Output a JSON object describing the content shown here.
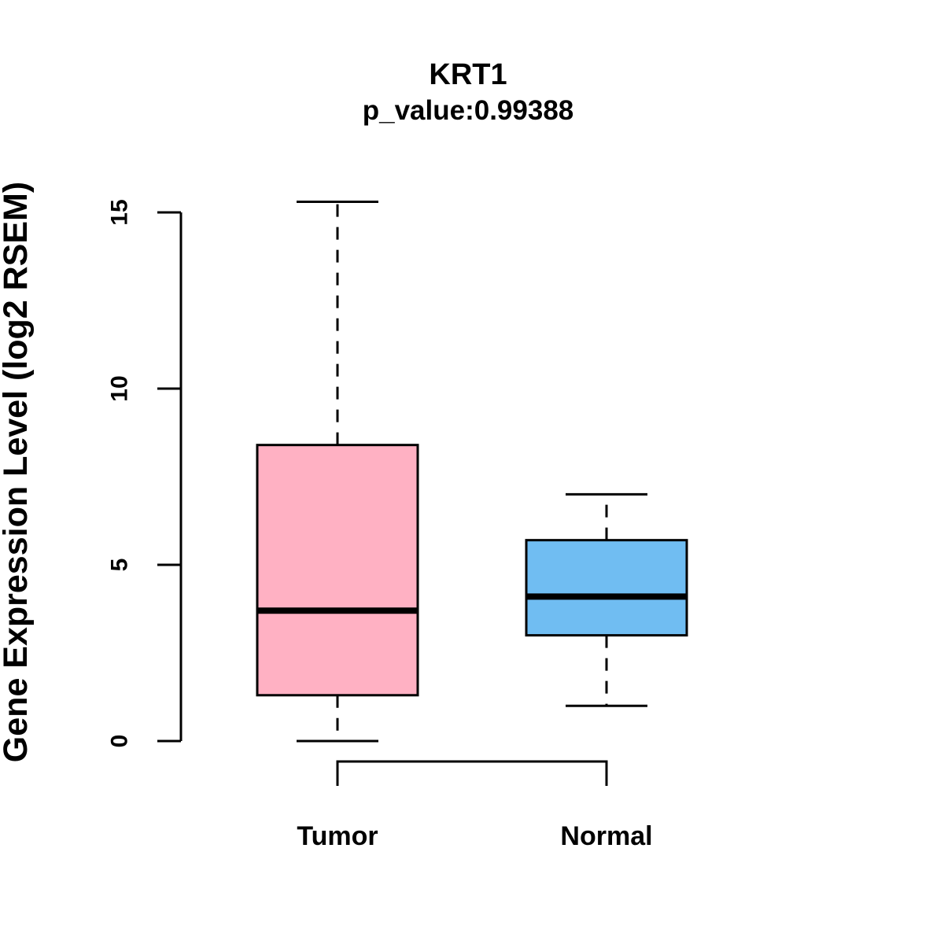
{
  "page": {
    "background_color": "#ffffff",
    "foreground_color": "#000000"
  },
  "chart_data": {
    "type": "boxplot",
    "title": "KRT1",
    "subtitle": "p_value:0.99388",
    "ylabel": "Gene Expression Level (log2 RSEM)",
    "xlabel": "",
    "categories": [
      "Tumor",
      "Normal"
    ],
    "yticks": [
      0,
      5,
      10,
      15
    ],
    "ylim": [
      0,
      15.3
    ],
    "grid": false,
    "legend": "none",
    "stroke_color": "#000000",
    "series": [
      {
        "name": "Tumor",
        "fill_color": "#FFB1C3",
        "whisker_low": 0.0,
        "q1": 1.3,
        "median": 3.7,
        "q3": 8.4,
        "whisker_high": 15.3
      },
      {
        "name": "Normal",
        "fill_color": "#70BDF2",
        "whisker_low": 1.0,
        "q1": 3.0,
        "median": 4.1,
        "q3": 5.7,
        "whisker_high": 7.0
      }
    ]
  }
}
